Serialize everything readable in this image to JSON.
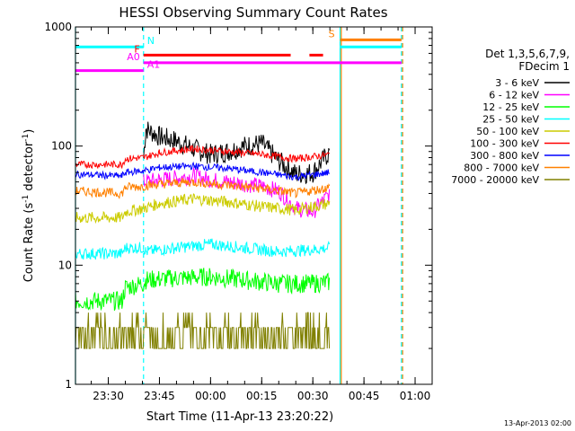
{
  "chart_data": {
    "type": "line",
    "title": "HESSI Observing Summary Count Rates",
    "xlabel": "Start Time (11-Apr-13 23:20:22)",
    "ylabel_main": "Count Rate (s",
    "ylabel_sup1": "-1",
    "ylabel_mid": " detector",
    "ylabel_sup2": "-1",
    "ylabel_end": ")",
    "yscale": "log",
    "ylim": [
      1,
      1000
    ],
    "xlim": [
      "23:20:22",
      "01:05:00"
    ],
    "x_ticks": [
      "23:30",
      "23:45",
      "00:00",
      "00:15",
      "00:30",
      "00:45",
      "01:00"
    ],
    "y_ticks": [
      {
        "value": 1,
        "label": "1"
      },
      {
        "value": 10,
        "label": "10"
      },
      {
        "value": 100,
        "label": "100"
      },
      {
        "value": 1000,
        "label": "1000"
      }
    ],
    "legend_title": [
      "Det 1,3,5,6,7,9,",
      "FDecim 1"
    ],
    "legend_placement": "right",
    "series": [
      {
        "name": "3 - 6 keV",
        "color": "#000000",
        "x": [
          "23:40:20",
          "23:41",
          "23:45",
          "23:50",
          "23:55",
          "00:00",
          "00:05",
          "00:10",
          "00:15",
          "00:20",
          "00:25",
          "00:30",
          "00:35"
        ],
        "y": [
          80,
          140,
          120,
          110,
          95,
          85,
          90,
          100,
          105,
          75,
          58,
          60,
          90
        ]
      },
      {
        "name": "6 - 12 keV",
        "color": "#ff00ff",
        "x": [
          "23:40:20",
          "23:45",
          "23:50",
          "23:55",
          "00:00",
          "00:05",
          "00:10",
          "00:15",
          "00:20",
          "00:25",
          "00:30",
          "00:35"
        ],
        "y": [
          50,
          52,
          54,
          56,
          52,
          50,
          48,
          46,
          42,
          30,
          28,
          40
        ]
      },
      {
        "name": "12 - 25 keV",
        "color": "#00ff00",
        "x": [
          "23:20:22",
          "23:27",
          "23:28",
          "23:34",
          "23:35",
          "23:40:20",
          "23:41",
          "23:50",
          "00:00",
          "00:10",
          "00:20",
          "00:30",
          "00:35"
        ],
        "y": [
          5,
          5,
          5,
          5,
          6.5,
          7,
          7.5,
          7.8,
          8,
          7.5,
          7,
          7,
          7.2
        ]
      },
      {
        "name": "25 - 50 keV",
        "color": "#00ffff",
        "x": [
          "23:20:22",
          "23:34",
          "23:35",
          "23:40:20",
          "23:41",
          "23:50",
          "00:00",
          "00:10",
          "00:20",
          "00:30",
          "00:35"
        ],
        "y": [
          12.5,
          12.5,
          14,
          14,
          13,
          14,
          15,
          14,
          13,
          13.5,
          14
        ]
      },
      {
        "name": "50 - 100 keV",
        "color": "#cccc00",
        "x": [
          "23:20:22",
          "23:34",
          "23:35",
          "23:40:20",
          "23:45",
          "23:55",
          "00:05",
          "00:15",
          "00:25",
          "00:35"
        ],
        "y": [
          25,
          25,
          28,
          30,
          33,
          36,
          34,
          31,
          29,
          33
        ]
      },
      {
        "name": "100 - 300 keV",
        "color": "#ff0000",
        "x": [
          "23:20:22",
          "23:34",
          "23:35",
          "23:40:20",
          "23:45",
          "23:55",
          "00:05",
          "00:15",
          "00:25",
          "00:35"
        ],
        "y": [
          70,
          70,
          78,
          80,
          88,
          95,
          90,
          85,
          78,
          85
        ]
      },
      {
        "name": "300 - 800 keV",
        "color": "#0000ff",
        "x": [
          "23:20:22",
          "23:34",
          "23:35",
          "23:40:20",
          "23:45",
          "23:55",
          "00:05",
          "00:15",
          "00:25",
          "00:35"
        ],
        "y": [
          58,
          56,
          60,
          62,
          66,
          68,
          65,
          60,
          55,
          60
        ]
      },
      {
        "name": "800 - 7000 keV",
        "color": "#ff8000",
        "x": [
          "23:20:22",
          "23:34",
          "23:35",
          "23:40:20",
          "23:45",
          "23:55",
          "00:05",
          "00:15",
          "00:25",
          "00:35"
        ],
        "y": [
          42,
          40,
          45,
          46,
          48,
          50,
          47,
          44,
          40,
          45
        ]
      },
      {
        "name": "7000 - 20000 keV",
        "color": "#808000",
        "x": [
          "23:20:22",
          "23:40",
          "23:45",
          "23:50",
          "23:55",
          "00:00",
          "00:10",
          "00:20",
          "00:30",
          "00:35"
        ],
        "y": [
          2,
          2,
          3,
          3,
          3,
          3,
          3,
          2.2,
          2.5,
          3
        ]
      }
    ],
    "flag_bars": [
      {
        "label": "N",
        "label_color": "#00ffff",
        "color": "#00ffff",
        "y": 680,
        "segments": [
          [
            "23:20:22",
            "23:40:20"
          ],
          [
            "00:38",
            "00:56"
          ]
        ]
      },
      {
        "label": "F",
        "label_color": "#ff0000",
        "color": "#ff0000",
        "y": 580,
        "segments": [
          [
            "23:40:20",
            "00:23:30"
          ],
          [
            "00:29",
            "00:33"
          ]
        ]
      },
      {
        "label": "A0",
        "label_color": "#ff00ff",
        "color": "#ff00ff",
        "y": 500,
        "segments": [
          [
            "23:40:20",
            "00:56"
          ]
        ]
      },
      {
        "label": "A1",
        "label_color": "#ff00ff",
        "color": "#ff00ff",
        "y": 430,
        "segments": [
          [
            "23:20:22",
            "23:40:20"
          ]
        ]
      },
      {
        "label": "S",
        "label_color": "#ff8000",
        "color": "#ff8000",
        "y": 780,
        "segments": [
          [
            "00:38",
            "00:56"
          ]
        ]
      }
    ],
    "vertical_markers": [
      {
        "x": "23:20:22",
        "color": "#00ffff",
        "style": "solid"
      },
      {
        "x": "23:40:20",
        "color": "#00ffff",
        "style": "dashed"
      },
      {
        "x": "00:38",
        "color": "#00ffff",
        "style": "solid"
      },
      {
        "x": "00:38:20",
        "color": "#ff8000",
        "style": "solid"
      },
      {
        "x": "00:56",
        "color": "#00ffff",
        "style": "dashed"
      },
      {
        "x": "00:56:20",
        "color": "#ff8000",
        "style": "dashed"
      }
    ],
    "footer_date": "13-Apr-2013 02:00"
  }
}
